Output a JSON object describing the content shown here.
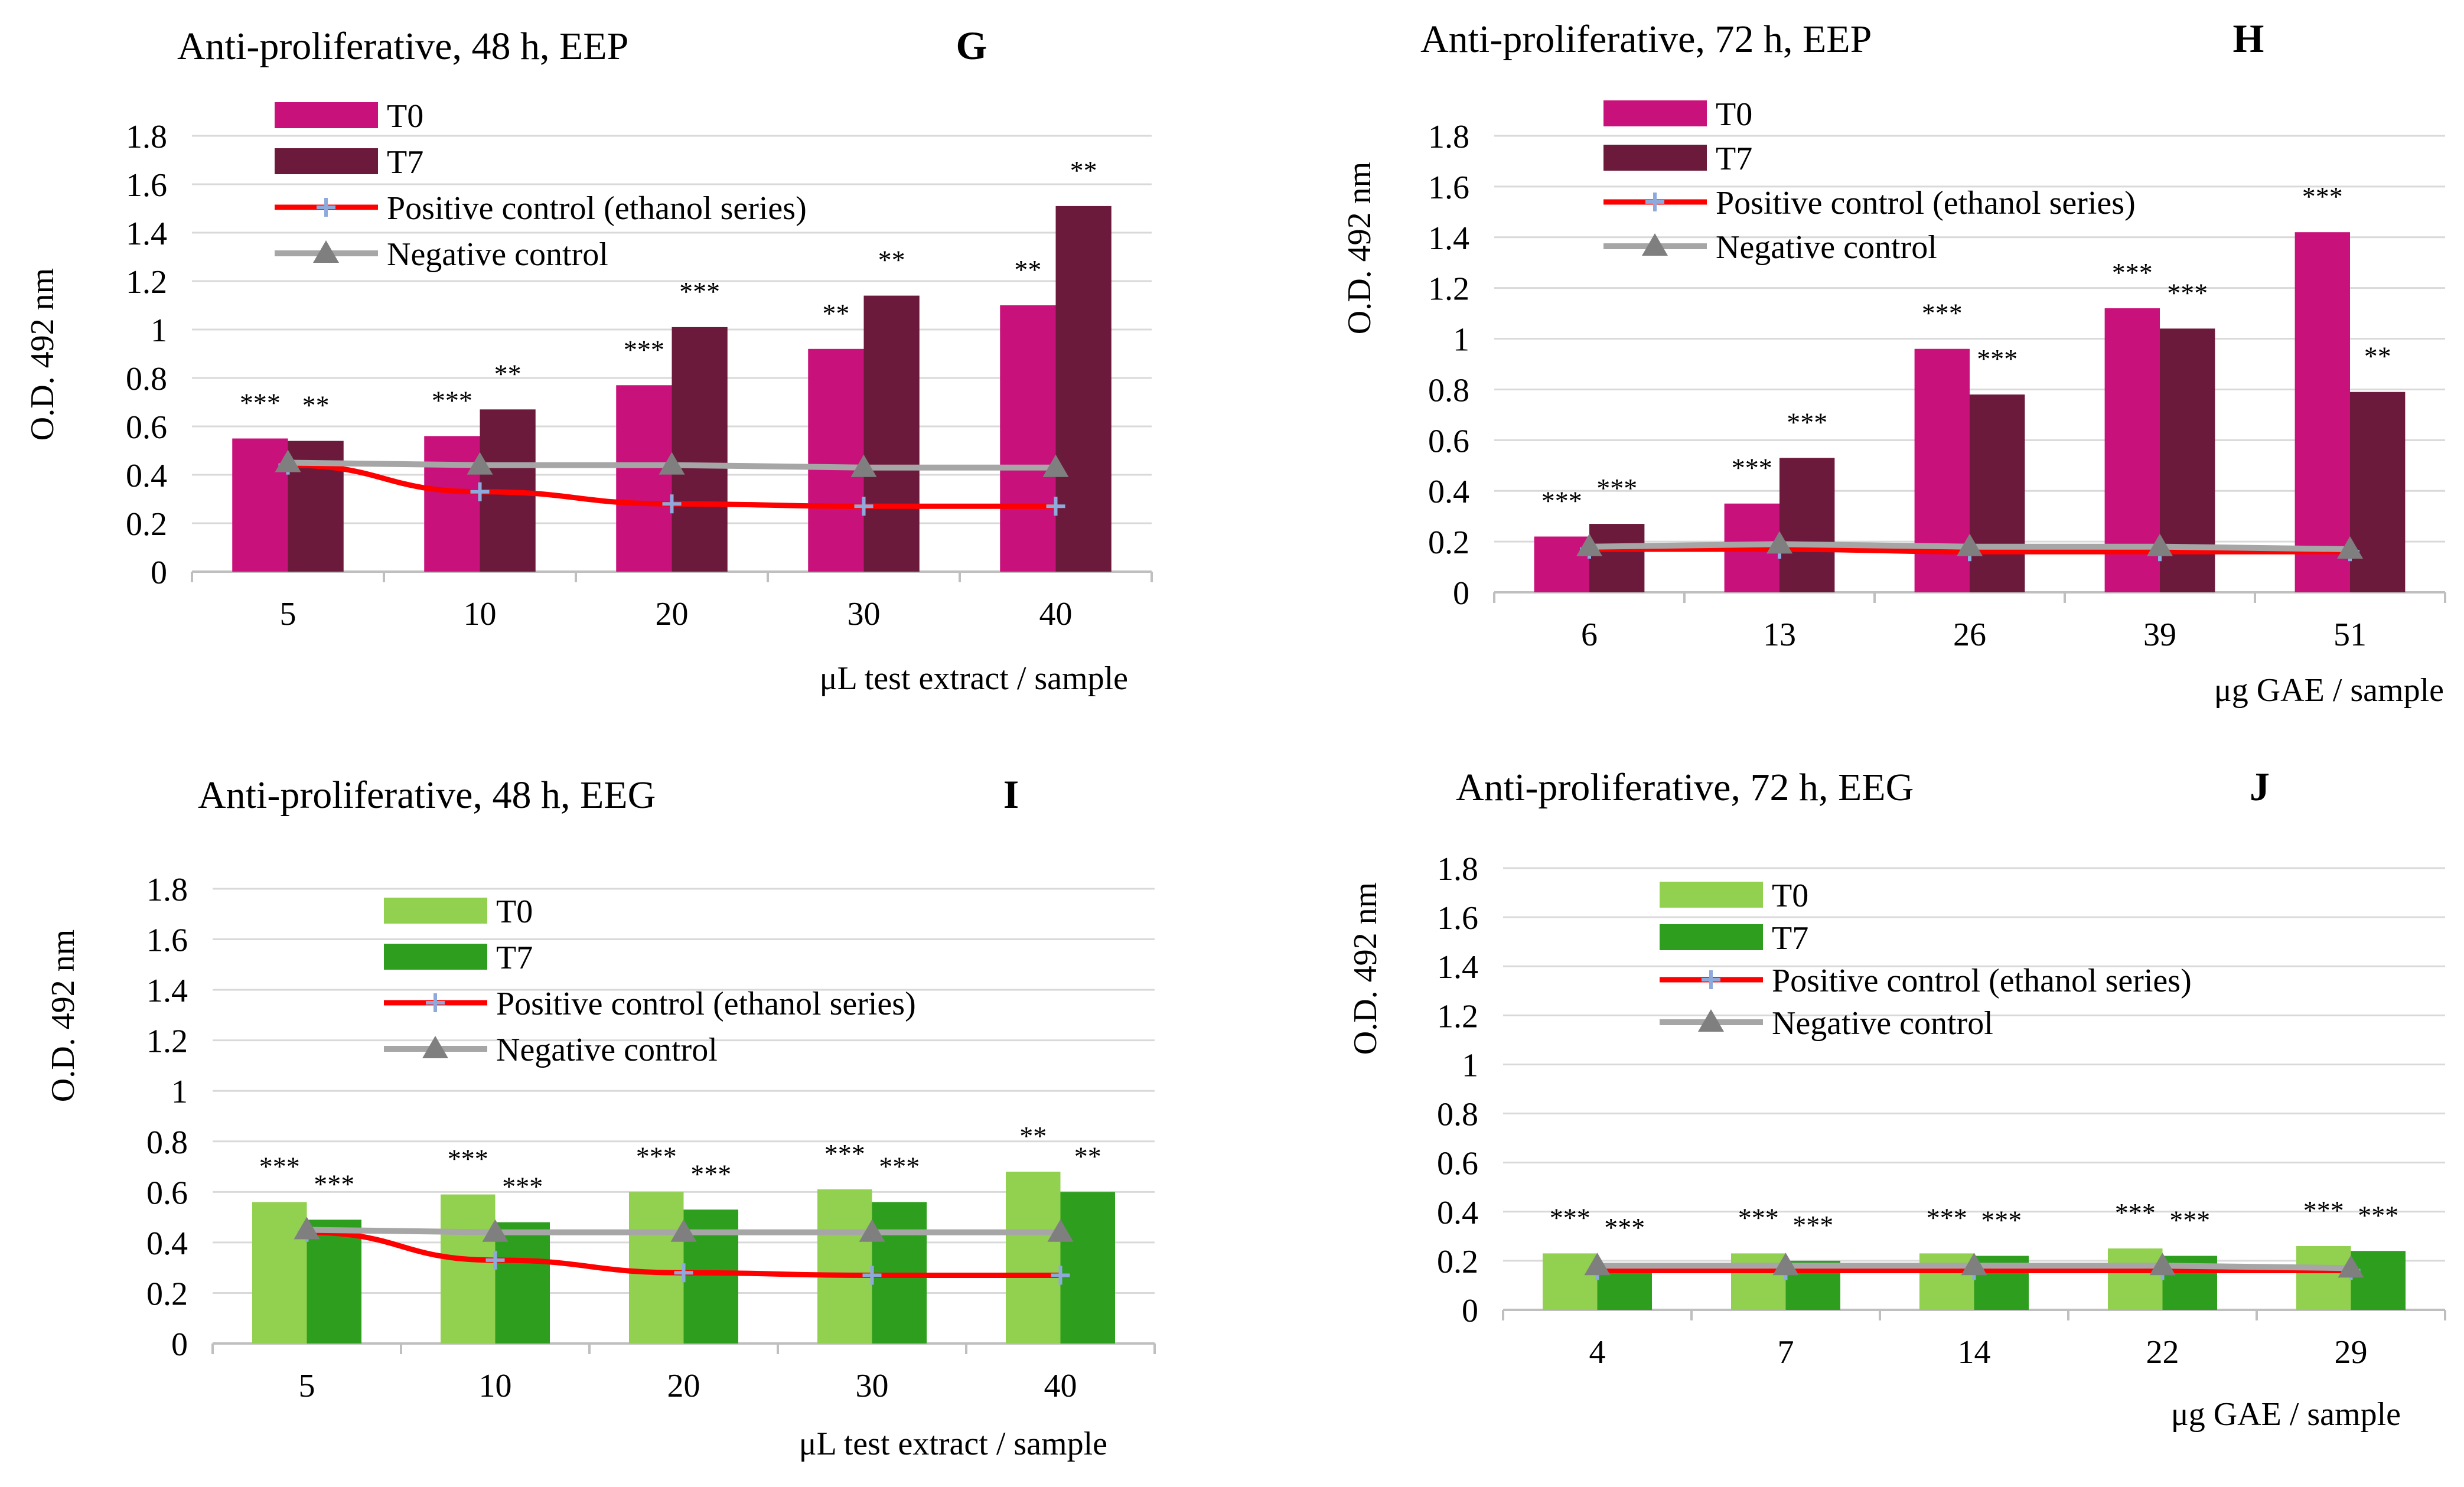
{
  "figure": {
    "colors": {
      "eep_t0": "#C8117A",
      "eep_t7": "#6C1A3B",
      "eeg_t0": "#92D050",
      "eeg_t7": "#2E9E1E",
      "positive": "#FF0000",
      "positive_marker": "#8EA9DB",
      "negative": "#A6A6A6",
      "negative_marker": "#7F7F7F",
      "grid": "#D9D9D9",
      "axis": "#BFBFBF"
    }
  },
  "chart_data": [
    {
      "id": "G",
      "type": "bar",
      "title": "Anti-proliferative, 48 h, EEP",
      "panel_label": "G",
      "xlabel": "μL test extract / sample",
      "ylabel": "O.D. 492 nm",
      "ylim": [
        0,
        1.8
      ],
      "yticks": [
        "0",
        "0.2",
        "0.4",
        "0.6",
        "0.8",
        "1",
        "1.2",
        "1.4",
        "1.6",
        "1.8"
      ],
      "grid": true,
      "legend_position": "top-left",
      "categories": [
        "5",
        "10",
        "20",
        "30",
        "40"
      ],
      "series": [
        {
          "name": "T0",
          "kind": "bar",
          "color_key": "eep_t0",
          "values": [
            0.55,
            0.56,
            0.77,
            0.92,
            1.1
          ],
          "labels": [
            "***",
            "***",
            "***",
            "**",
            "**"
          ]
        },
        {
          "name": "T7",
          "kind": "bar",
          "color_key": "eep_t7",
          "values": [
            0.54,
            0.67,
            1.01,
            1.14,
            1.51
          ],
          "labels": [
            "**",
            "**",
            "***",
            "**",
            "**"
          ]
        },
        {
          "name": "Positive control (ethanol series)",
          "kind": "line",
          "values": [
            0.44,
            0.33,
            0.28,
            0.27,
            0.27
          ]
        },
        {
          "name": "Negative control",
          "kind": "line",
          "values": [
            0.45,
            0.44,
            0.44,
            0.43,
            0.43
          ]
        }
      ]
    },
    {
      "id": "H",
      "type": "bar",
      "title": "Anti-proliferative, 72 h, EEP",
      "panel_label": "H",
      "xlabel": "μg GAE / sample",
      "ylabel": "O.D. 492 nm",
      "ylim": [
        0,
        1.8
      ],
      "yticks": [
        "0",
        "0.2",
        "0.4",
        "0.6",
        "0.8",
        "1",
        "1.2",
        "1.4",
        "1.6",
        "1.8"
      ],
      "grid": true,
      "legend_position": "top-left",
      "categories": [
        "6",
        "13",
        "26",
        "39",
        "51"
      ],
      "series": [
        {
          "name": "T0",
          "kind": "bar",
          "color_key": "eep_t0",
          "values": [
            0.22,
            0.35,
            0.96,
            1.12,
            1.42
          ],
          "labels": [
            "***",
            "***",
            "***",
            "***",
            "***"
          ]
        },
        {
          "name": "T7",
          "kind": "bar",
          "color_key": "eep_t7",
          "values": [
            0.27,
            0.53,
            0.78,
            1.04,
            0.79
          ],
          "labels": [
            "***",
            "***",
            "***",
            "***",
            "**"
          ]
        },
        {
          "name": "Positive control (ethanol series)",
          "kind": "line",
          "values": [
            0.17,
            0.17,
            0.16,
            0.16,
            0.16
          ]
        },
        {
          "name": "Negative control",
          "kind": "line",
          "values": [
            0.18,
            0.19,
            0.18,
            0.18,
            0.17
          ]
        }
      ]
    },
    {
      "id": "I",
      "type": "bar",
      "title": "Anti-proliferative, 48 h, EEG",
      "panel_label": "I",
      "xlabel": "μL test extract / sample",
      "ylabel": "O.D. 492 nm",
      "ylim": [
        0,
        1.8
      ],
      "yticks": [
        "0",
        "0.2",
        "0.4",
        "0.6",
        "0.8",
        "1",
        "1.2",
        "1.4",
        "1.6",
        "1.8"
      ],
      "grid": true,
      "legend_position": "top-center",
      "categories": [
        "5",
        "10",
        "20",
        "30",
        "40"
      ],
      "series": [
        {
          "name": "T0",
          "kind": "bar",
          "color_key": "eeg_t0",
          "values": [
            0.56,
            0.59,
            0.6,
            0.61,
            0.68
          ],
          "labels": [
            "***",
            "***",
            "***",
            "***",
            "**"
          ]
        },
        {
          "name": "T7",
          "kind": "bar",
          "color_key": "eeg_t7",
          "values": [
            0.49,
            0.48,
            0.53,
            0.56,
            0.6
          ],
          "labels": [
            "***",
            "***",
            "***",
            "***",
            "**"
          ]
        },
        {
          "name": "Positive control (ethanol series)",
          "kind": "line",
          "values": [
            0.44,
            0.33,
            0.28,
            0.27,
            0.27
          ]
        },
        {
          "name": "Negative control",
          "kind": "line",
          "values": [
            0.45,
            0.44,
            0.44,
            0.44,
            0.44
          ]
        }
      ]
    },
    {
      "id": "J",
      "type": "bar",
      "title": "Anti-proliferative, 72 h, EEG",
      "panel_label": "J",
      "xlabel": "μg GAE / sample",
      "ylabel": "O.D. 492 nm",
      "ylim": [
        0,
        1.8
      ],
      "yticks": [
        "0",
        "0.2",
        "0.4",
        "0.6",
        "0.8",
        "1",
        "1.2",
        "1.4",
        "1.6",
        "1.8"
      ],
      "grid": true,
      "legend_position": "top-center",
      "categories": [
        "4",
        "7",
        "14",
        "22",
        "29"
      ],
      "series": [
        {
          "name": "T0",
          "kind": "bar",
          "color_key": "eeg_t0",
          "values": [
            0.23,
            0.23,
            0.23,
            0.25,
            0.26
          ],
          "labels": [
            "***",
            "***",
            "***",
            "***",
            "***"
          ]
        },
        {
          "name": "T7",
          "kind": "bar",
          "color_key": "eeg_t7",
          "values": [
            0.19,
            0.2,
            0.22,
            0.22,
            0.24
          ],
          "labels": [
            "***",
            "***",
            "***",
            "***",
            "***"
          ]
        },
        {
          "name": "Positive control (ethanol series)",
          "kind": "line",
          "values": [
            0.16,
            0.16,
            0.16,
            0.16,
            0.16
          ]
        },
        {
          "name": "Negative control",
          "kind": "line",
          "values": [
            0.18,
            0.18,
            0.18,
            0.18,
            0.17
          ]
        }
      ]
    }
  ]
}
